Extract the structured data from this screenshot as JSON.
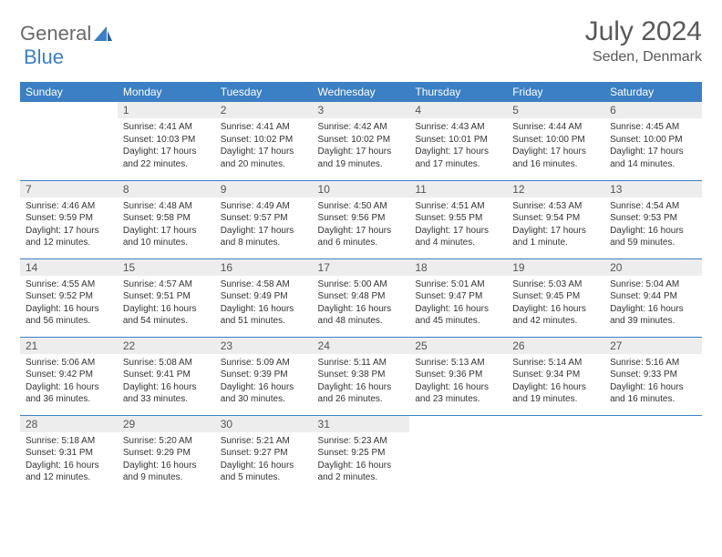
{
  "logo": {
    "text_a": "General",
    "text_b": "Blue"
  },
  "title": {
    "month": "July 2024",
    "location": "Seden, Denmark"
  },
  "colors": {
    "header_bg": "#3b7fc4",
    "header_fg": "#ffffff",
    "daynum_bg": "#ededed",
    "border": "#3b7fc4",
    "text": "#333333",
    "title_text": "#595959"
  },
  "weekdays": [
    "Sunday",
    "Monday",
    "Tuesday",
    "Wednesday",
    "Thursday",
    "Friday",
    "Saturday"
  ],
  "weeks": [
    [
      {
        "empty": true
      },
      {
        "n": "1",
        "sr": "Sunrise: 4:41 AM",
        "ss": "Sunset: 10:03 PM",
        "dl": "Daylight: 17 hours and 22 minutes."
      },
      {
        "n": "2",
        "sr": "Sunrise: 4:41 AM",
        "ss": "Sunset: 10:02 PM",
        "dl": "Daylight: 17 hours and 20 minutes."
      },
      {
        "n": "3",
        "sr": "Sunrise: 4:42 AM",
        "ss": "Sunset: 10:02 PM",
        "dl": "Daylight: 17 hours and 19 minutes."
      },
      {
        "n": "4",
        "sr": "Sunrise: 4:43 AM",
        "ss": "Sunset: 10:01 PM",
        "dl": "Daylight: 17 hours and 17 minutes."
      },
      {
        "n": "5",
        "sr": "Sunrise: 4:44 AM",
        "ss": "Sunset: 10:00 PM",
        "dl": "Daylight: 17 hours and 16 minutes."
      },
      {
        "n": "6",
        "sr": "Sunrise: 4:45 AM",
        "ss": "Sunset: 10:00 PM",
        "dl": "Daylight: 17 hours and 14 minutes."
      }
    ],
    [
      {
        "n": "7",
        "sr": "Sunrise: 4:46 AM",
        "ss": "Sunset: 9:59 PM",
        "dl": "Daylight: 17 hours and 12 minutes."
      },
      {
        "n": "8",
        "sr": "Sunrise: 4:48 AM",
        "ss": "Sunset: 9:58 PM",
        "dl": "Daylight: 17 hours and 10 minutes."
      },
      {
        "n": "9",
        "sr": "Sunrise: 4:49 AM",
        "ss": "Sunset: 9:57 PM",
        "dl": "Daylight: 17 hours and 8 minutes."
      },
      {
        "n": "10",
        "sr": "Sunrise: 4:50 AM",
        "ss": "Sunset: 9:56 PM",
        "dl": "Daylight: 17 hours and 6 minutes."
      },
      {
        "n": "11",
        "sr": "Sunrise: 4:51 AM",
        "ss": "Sunset: 9:55 PM",
        "dl": "Daylight: 17 hours and 4 minutes."
      },
      {
        "n": "12",
        "sr": "Sunrise: 4:53 AM",
        "ss": "Sunset: 9:54 PM",
        "dl": "Daylight: 17 hours and 1 minute."
      },
      {
        "n": "13",
        "sr": "Sunrise: 4:54 AM",
        "ss": "Sunset: 9:53 PM",
        "dl": "Daylight: 16 hours and 59 minutes."
      }
    ],
    [
      {
        "n": "14",
        "sr": "Sunrise: 4:55 AM",
        "ss": "Sunset: 9:52 PM",
        "dl": "Daylight: 16 hours and 56 minutes."
      },
      {
        "n": "15",
        "sr": "Sunrise: 4:57 AM",
        "ss": "Sunset: 9:51 PM",
        "dl": "Daylight: 16 hours and 54 minutes."
      },
      {
        "n": "16",
        "sr": "Sunrise: 4:58 AM",
        "ss": "Sunset: 9:49 PM",
        "dl": "Daylight: 16 hours and 51 minutes."
      },
      {
        "n": "17",
        "sr": "Sunrise: 5:00 AM",
        "ss": "Sunset: 9:48 PM",
        "dl": "Daylight: 16 hours and 48 minutes."
      },
      {
        "n": "18",
        "sr": "Sunrise: 5:01 AM",
        "ss": "Sunset: 9:47 PM",
        "dl": "Daylight: 16 hours and 45 minutes."
      },
      {
        "n": "19",
        "sr": "Sunrise: 5:03 AM",
        "ss": "Sunset: 9:45 PM",
        "dl": "Daylight: 16 hours and 42 minutes."
      },
      {
        "n": "20",
        "sr": "Sunrise: 5:04 AM",
        "ss": "Sunset: 9:44 PM",
        "dl": "Daylight: 16 hours and 39 minutes."
      }
    ],
    [
      {
        "n": "21",
        "sr": "Sunrise: 5:06 AM",
        "ss": "Sunset: 9:42 PM",
        "dl": "Daylight: 16 hours and 36 minutes."
      },
      {
        "n": "22",
        "sr": "Sunrise: 5:08 AM",
        "ss": "Sunset: 9:41 PM",
        "dl": "Daylight: 16 hours and 33 minutes."
      },
      {
        "n": "23",
        "sr": "Sunrise: 5:09 AM",
        "ss": "Sunset: 9:39 PM",
        "dl": "Daylight: 16 hours and 30 minutes."
      },
      {
        "n": "24",
        "sr": "Sunrise: 5:11 AM",
        "ss": "Sunset: 9:38 PM",
        "dl": "Daylight: 16 hours and 26 minutes."
      },
      {
        "n": "25",
        "sr": "Sunrise: 5:13 AM",
        "ss": "Sunset: 9:36 PM",
        "dl": "Daylight: 16 hours and 23 minutes."
      },
      {
        "n": "26",
        "sr": "Sunrise: 5:14 AM",
        "ss": "Sunset: 9:34 PM",
        "dl": "Daylight: 16 hours and 19 minutes."
      },
      {
        "n": "27",
        "sr": "Sunrise: 5:16 AM",
        "ss": "Sunset: 9:33 PM",
        "dl": "Daylight: 16 hours and 16 minutes."
      }
    ],
    [
      {
        "n": "28",
        "sr": "Sunrise: 5:18 AM",
        "ss": "Sunset: 9:31 PM",
        "dl": "Daylight: 16 hours and 12 minutes."
      },
      {
        "n": "29",
        "sr": "Sunrise: 5:20 AM",
        "ss": "Sunset: 9:29 PM",
        "dl": "Daylight: 16 hours and 9 minutes."
      },
      {
        "n": "30",
        "sr": "Sunrise: 5:21 AM",
        "ss": "Sunset: 9:27 PM",
        "dl": "Daylight: 16 hours and 5 minutes."
      },
      {
        "n": "31",
        "sr": "Sunrise: 5:23 AM",
        "ss": "Sunset: 9:25 PM",
        "dl": "Daylight: 16 hours and 2 minutes."
      },
      {
        "empty": true
      },
      {
        "empty": true
      },
      {
        "empty": true
      }
    ]
  ]
}
